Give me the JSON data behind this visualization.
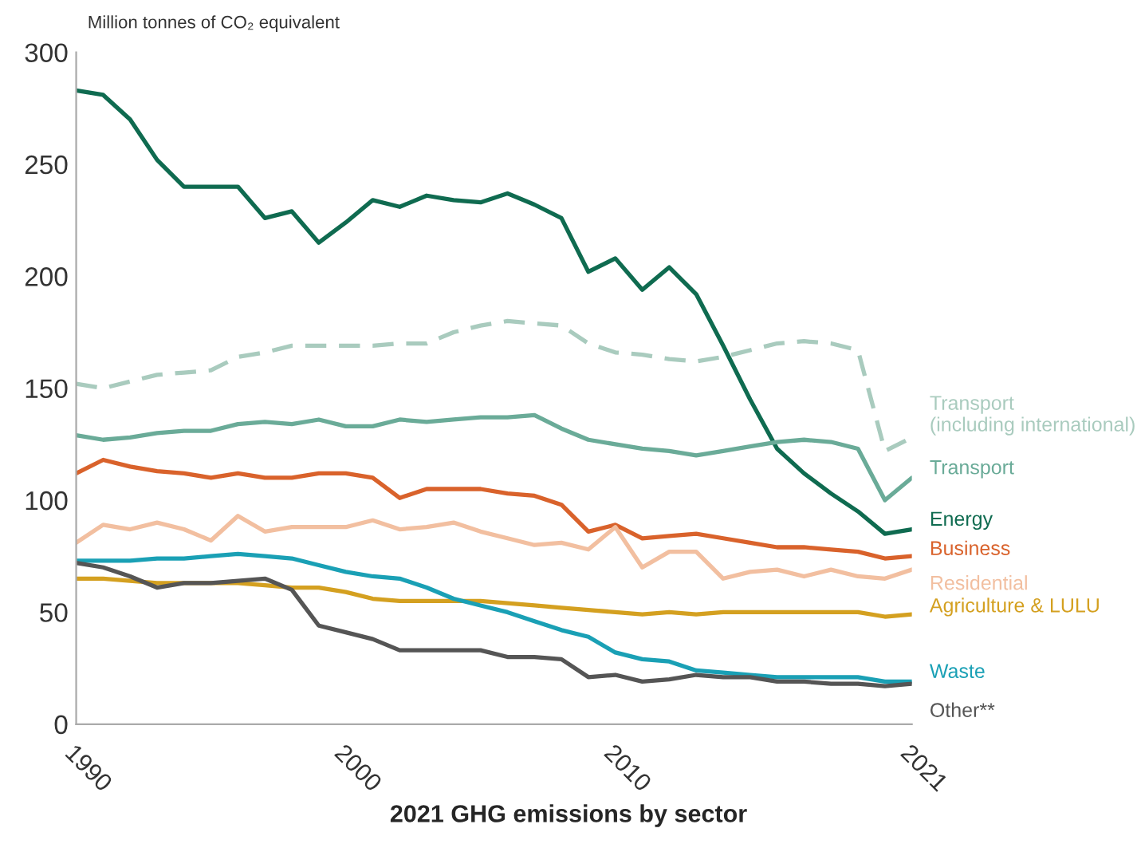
{
  "chart_data": {
    "type": "line",
    "title": "2021 GHG emissions by sector",
    "ylabel": "Million tonnes of CO₂ equivalent",
    "x": [
      1990,
      1991,
      1992,
      1993,
      1994,
      1995,
      1996,
      1997,
      1998,
      1999,
      2000,
      2001,
      2002,
      2003,
      2004,
      2005,
      2006,
      2007,
      2008,
      2009,
      2010,
      2011,
      2012,
      2013,
      2014,
      2015,
      2016,
      2017,
      2018,
      2019,
      2020,
      2021
    ],
    "xlim": [
      1990,
      2021
    ],
    "xticks": [
      1990,
      2000,
      2010,
      2021
    ],
    "ylim": [
      0,
      300
    ],
    "yticks": [
      0,
      50,
      100,
      150,
      200,
      250,
      300
    ],
    "grid": false,
    "legend": false,
    "marker": "none",
    "series": [
      {
        "name": "Transport\n(including international)",
        "color": "#a9cbbe",
        "line_style": "dashed",
        "values": [
          152,
          150,
          153,
          156,
          157,
          158,
          164,
          166,
          169,
          169,
          169,
          169,
          170,
          170,
          175,
          178,
          180,
          179,
          178,
          170,
          166,
          165,
          163,
          162,
          164,
          167,
          170,
          171,
          170,
          167,
          122,
          128
        ]
      },
      {
        "name": "Energy",
        "color": "#0f6b50",
        "line_style": "solid",
        "values": [
          283,
          281,
          270,
          252,
          240,
          240,
          240,
          226,
          229,
          215,
          224,
          234,
          231,
          236,
          234,
          233,
          237,
          232,
          226,
          202,
          208,
          194,
          204,
          192,
          169,
          145,
          123,
          112,
          103,
          95,
          85,
          87
        ]
      },
      {
        "name": "Transport",
        "color": "#6aab98",
        "line_style": "solid",
        "values": [
          129,
          127,
          128,
          130,
          131,
          131,
          134,
          135,
          134,
          136,
          133,
          133,
          136,
          135,
          136,
          137,
          137,
          138,
          132,
          127,
          125,
          123,
          122,
          120,
          122,
          124,
          126,
          127,
          126,
          123,
          100,
          110
        ]
      },
      {
        "name": "Business",
        "color": "#d9622b",
        "line_style": "solid",
        "values": [
          112,
          118,
          115,
          113,
          112,
          110,
          112,
          110,
          110,
          112,
          112,
          110,
          101,
          105,
          105,
          105,
          103,
          102,
          98,
          86,
          89,
          83,
          84,
          85,
          83,
          81,
          79,
          79,
          78,
          77,
          74,
          75
        ]
      },
      {
        "name": "Residential",
        "color": "#f2bfa0",
        "line_style": "solid",
        "values": [
          81,
          89,
          87,
          90,
          87,
          82,
          93,
          86,
          88,
          88,
          88,
          91,
          87,
          88,
          90,
          86,
          83,
          80,
          81,
          78,
          88,
          70,
          77,
          77,
          65,
          68,
          69,
          66,
          69,
          66,
          65,
          69
        ]
      },
      {
        "name": "Agriculture & LULU",
        "color": "#d4a020",
        "line_style": "solid",
        "values": [
          65,
          65,
          64,
          63,
          63,
          63,
          63,
          62,
          61,
          61,
          59,
          56,
          55,
          55,
          55,
          55,
          54,
          53,
          52,
          51,
          50,
          49,
          50,
          49,
          50,
          50,
          50,
          50,
          50,
          50,
          48,
          49
        ]
      },
      {
        "name": "Waste",
        "color": "#1aa0b5",
        "line_style": "solid",
        "values": [
          73,
          73,
          73,
          74,
          74,
          75,
          76,
          75,
          74,
          71,
          68,
          66,
          65,
          61,
          56,
          53,
          50,
          46,
          42,
          39,
          32,
          29,
          28,
          24,
          23,
          22,
          21,
          21,
          21,
          21,
          19,
          19
        ]
      },
      {
        "name": "Other**",
        "color": "#555555",
        "line_style": "solid",
        "values": [
          72,
          70,
          66,
          61,
          63,
          63,
          64,
          65,
          60,
          44,
          41,
          38,
          33,
          33,
          33,
          33,
          30,
          30,
          29,
          21,
          22,
          19,
          20,
          22,
          21,
          21,
          19,
          19,
          18,
          18,
          17,
          18
        ]
      }
    ]
  }
}
